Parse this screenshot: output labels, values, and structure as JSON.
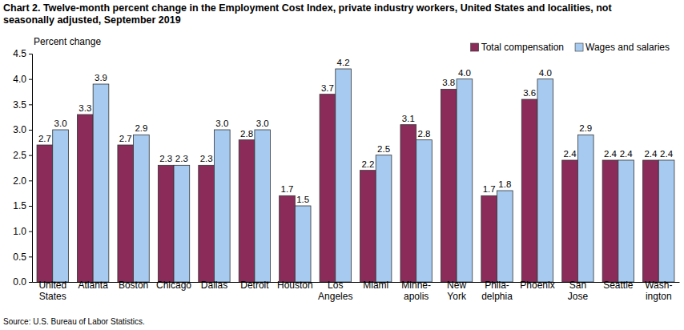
{
  "chart_data": {
    "type": "bar",
    "title": "Chart 2. Twelve-month percent change in the Employment Cost Index, private industry workers, United States and localities, not\nseasonally adjusted, September 2019",
    "y_label": "Percent change",
    "annotations": [
      "Source: U.S. Bureau of Labor Statistics."
    ],
    "categories": [
      "United\nStates",
      "Atlanta",
      "Boston",
      "Chicago",
      "Dallas",
      "Detroit",
      "Houston",
      "Los\nAngeles",
      "Miami",
      "Minne-\napolis",
      "New\nYork",
      "Phila-\ndelphia",
      "Phoenix",
      "San\nJose",
      "Seattle",
      "Wash-\nington"
    ],
    "series": [
      {
        "name": "Total compensation",
        "color": "#8b2b5a",
        "values": [
          2.7,
          3.3,
          2.7,
          2.3,
          2.3,
          2.8,
          1.7,
          3.7,
          2.2,
          3.1,
          3.8,
          1.7,
          3.6,
          2.4,
          2.4,
          2.4
        ],
        "value_labels": [
          "2.7",
          "3.3",
          "2.7",
          "2.3",
          "2.3",
          "2.8",
          "1.7",
          "3.7",
          "2.2",
          "3.1",
          "3.8",
          "1.7",
          "3.6",
          "2.4",
          "2.4",
          "2.4"
        ]
      },
      {
        "name": "Wages and salaries",
        "color": "#a6caf0",
        "values": [
          3.0,
          3.9,
          2.9,
          2.3,
          3.0,
          3.0,
          1.5,
          4.2,
          2.5,
          2.8,
          4.0,
          1.8,
          4.0,
          2.9,
          2.4,
          2.4
        ],
        "value_labels": [
          "3.0",
          "3.9",
          "2.9",
          "2.3",
          "3.0",
          "3.0",
          "1.5",
          "4.2",
          "2.5",
          "2.8",
          "4.0",
          "1.8",
          "4.0",
          "2.9",
          "2.4",
          "2.4"
        ]
      }
    ],
    "ylim": [
      0,
      4.5
    ],
    "yticks": [
      {
        "value": 0,
        "label": "0.0"
      },
      0.5,
      {
        "value": 1,
        "label": "1.0"
      },
      1.5,
      {
        "value": 2,
        "label": "2.0"
      },
      2.5,
      {
        "value": 3,
        "label": "3.0"
      },
      3.5,
      {
        "value": 4,
        "label": "4.0"
      },
      4.5
    ],
    "grid": false,
    "legend": "top-right",
    "data_labels": true
  }
}
